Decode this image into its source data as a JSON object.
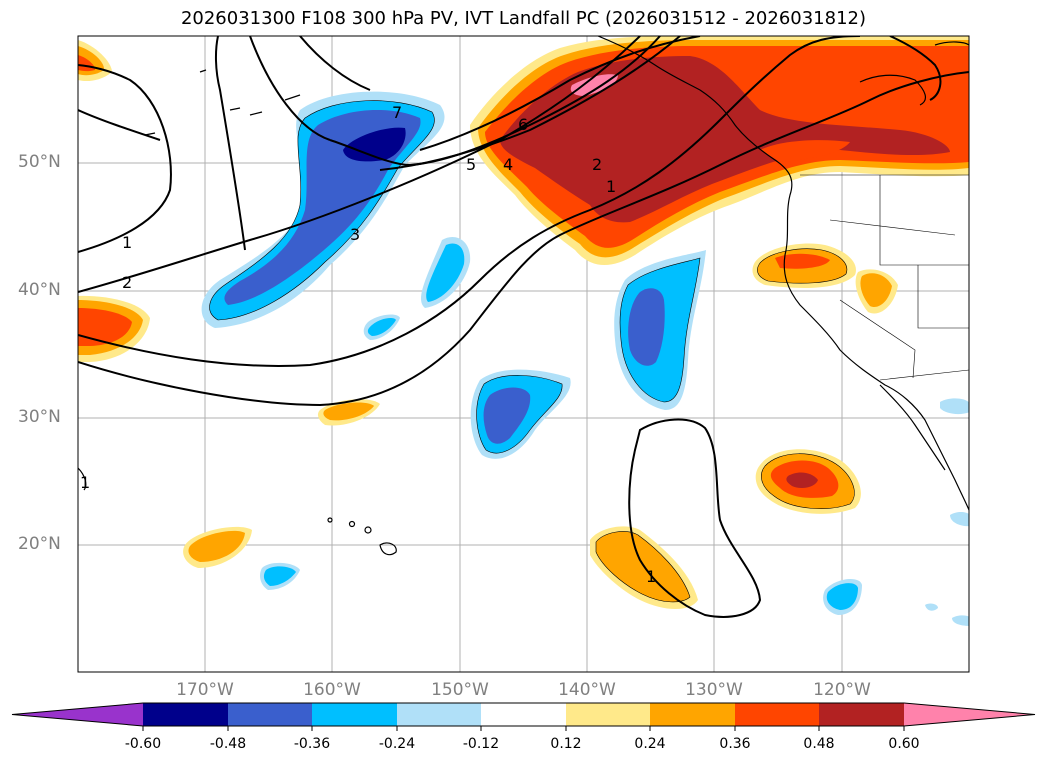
{
  "title": "2026031300 F108 300 hPa PV, IVT Landfall PC (2026031512 - 2026031812)",
  "lon_ticks": [
    "170°W",
    "160°W",
    "150°W",
    "140°W",
    "130°W",
    "120°W"
  ],
  "lat_ticks": [
    "50°N",
    "40°N",
    "30°N",
    "20°N"
  ],
  "contour_labels": [
    "1",
    "2",
    "3",
    "4",
    "5",
    "6",
    "7",
    "2",
    "1",
    "1",
    "1"
  ],
  "colorbar": {
    "labels": [
      "-0.60",
      "-0.48",
      "-0.36",
      "-0.24",
      "-0.12",
      "0.12",
      "0.24",
      "0.36",
      "0.48",
      "0.60"
    ],
    "colors": [
      "#9933cc",
      "#00008b",
      "#3a5fcd",
      "#00bfff",
      "#b0e0f8",
      "#ffffff",
      "#ffe98a",
      "#ffa500",
      "#ff4500",
      "#b22222",
      "#ff82ab"
    ]
  }
}
